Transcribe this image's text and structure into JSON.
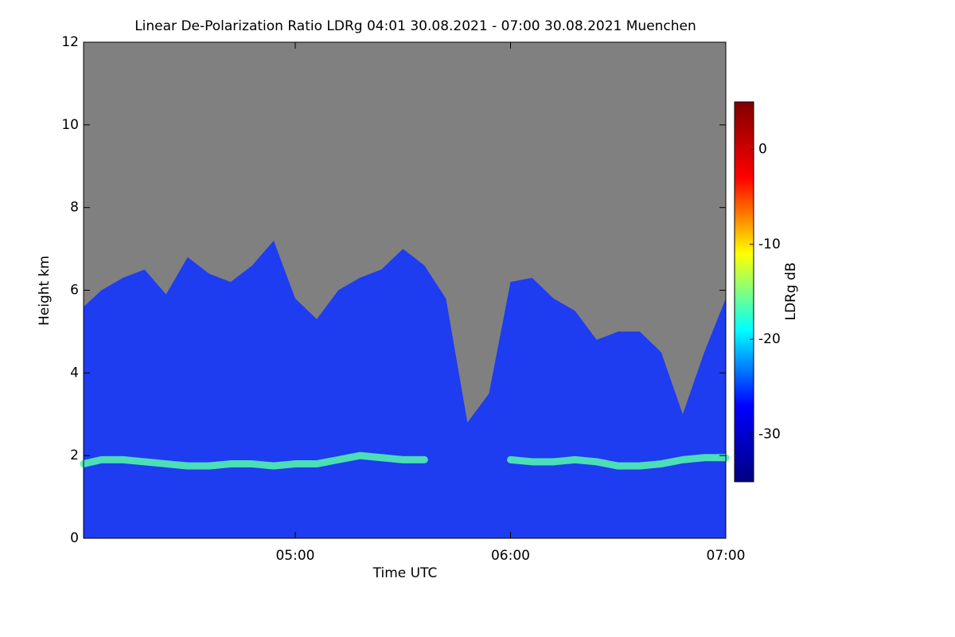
{
  "chart_data": {
    "type": "profile",
    "title": "Linear De-Polarization Ratio LDRg   04:01 30.08.2021 - 07:00 30.08.2021 Muenchen",
    "xlabel": "Time UTC",
    "ylabel": "Height km",
    "colorbar_label": "LDRg dB",
    "background": "#808080",
    "x": [
      4.0167,
      4.1,
      4.2,
      4.3,
      4.4,
      4.5,
      4.6,
      4.7,
      4.8,
      4.9,
      5.0,
      5.1,
      5.2,
      5.3,
      5.4,
      5.5,
      5.6,
      5.7,
      5.8,
      5.9,
      6.0,
      6.1,
      6.2,
      6.3,
      6.4,
      6.5,
      6.6,
      6.7,
      6.8,
      6.9,
      7.0
    ],
    "series": [
      {
        "color": "#1e3cf0",
        "values": [
          5.6,
          6.0,
          6.3,
          6.5,
          5.9,
          6.8,
          6.4,
          6.2,
          6.6,
          7.2,
          5.8,
          5.3,
          6.0,
          6.3,
          6.5,
          7.0,
          6.6,
          5.8,
          2.8,
          3.5,
          6.2,
          6.3,
          5.8,
          5.5,
          4.8,
          5.0,
          5.0,
          4.5,
          3.0,
          4.5,
          5.8
        ]
      },
      {
        "color": "#50f0b0",
        "values": [
          1.8,
          1.9,
          1.9,
          1.85,
          1.8,
          1.75,
          1.75,
          1.8,
          1.8,
          1.75,
          1.8,
          1.8,
          1.9,
          2.0,
          1.95,
          1.9,
          1.9,
          null,
          null,
          null,
          1.9,
          1.85,
          1.85,
          1.9,
          1.85,
          1.75,
          1.75,
          1.8,
          1.9,
          1.95,
          1.95
        ]
      }
    ],
    "xlim": [
      4.0167,
      7.0
    ],
    "xticks": [
      {
        "value": 5,
        "label": "05:00"
      },
      {
        "value": 6,
        "label": "06:00"
      },
      {
        "value": 7,
        "label": "07:00"
      }
    ],
    "ylim": [
      0,
      12
    ],
    "yticks": [
      0,
      2,
      4,
      6,
      8,
      10,
      12
    ],
    "clim": [
      -35,
      5
    ],
    "cticks": [
      -30,
      -20,
      -10,
      0
    ],
    "colormap": [
      "#00007f",
      "#0000ff",
      "#00ffff",
      "#ffff00",
      "#ff0000",
      "#7f0000"
    ]
  }
}
